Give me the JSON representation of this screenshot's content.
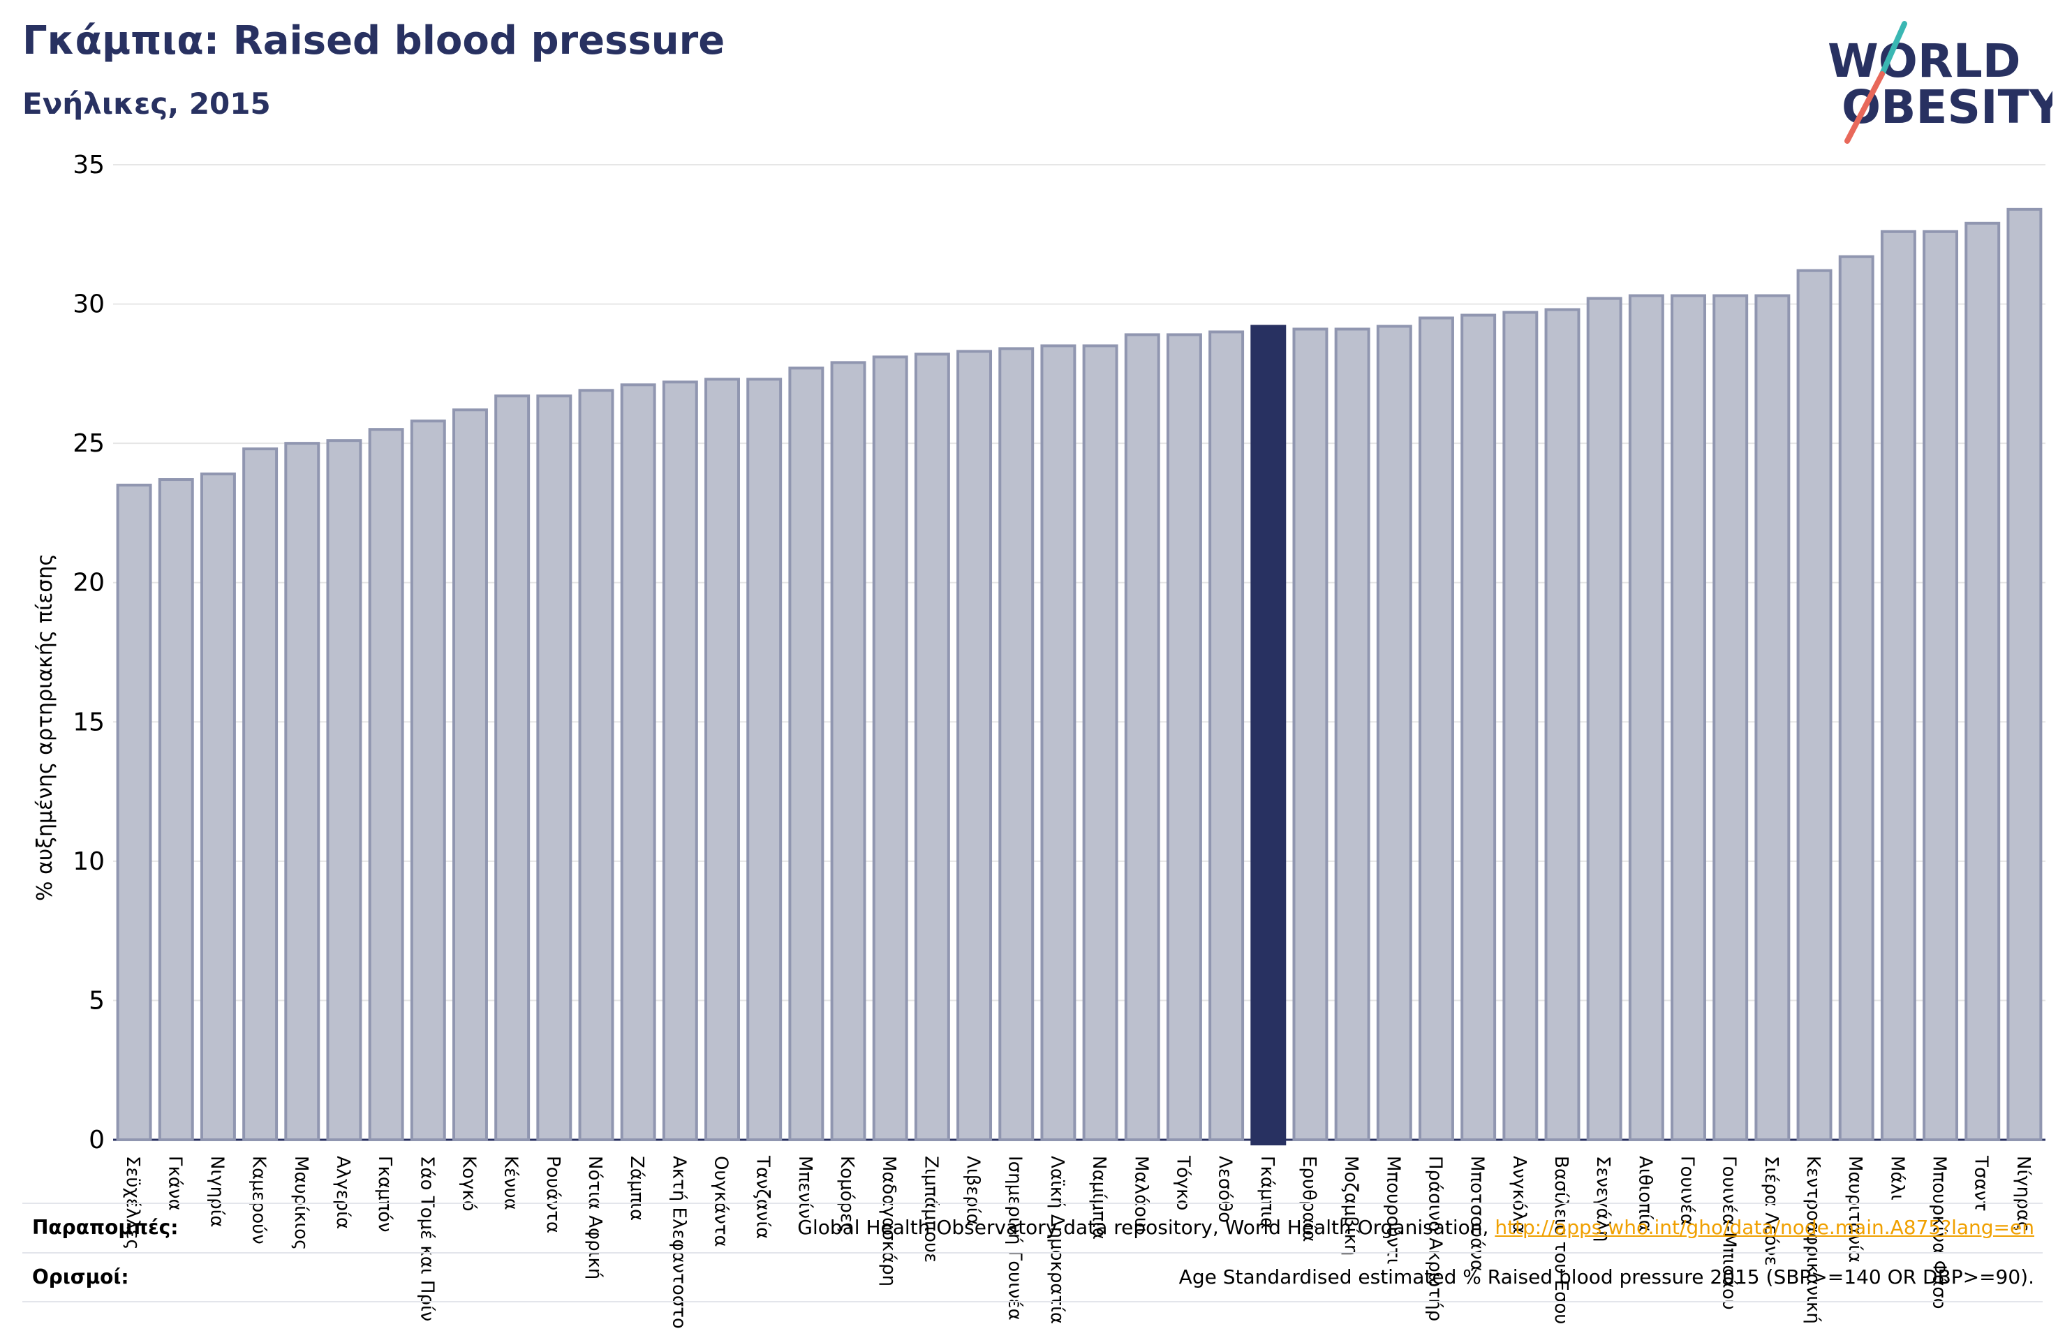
{
  "header": {
    "title": "Γκάμπια: Raised blood pressure",
    "subtitle": "Ενήλικες, 2015"
  },
  "logo": {
    "line1": "WORLD",
    "line2": "OBESITY",
    "slash_color_top": "#3ab7b3",
    "slash_color_bottom": "#e8685a"
  },
  "colors": {
    "bar_fill": "#bcc0ce",
    "bar_stroke": "#9096b0",
    "highlight": "#283161",
    "grid": "#e6e6e6",
    "axis": "#283161"
  },
  "chart_data": {
    "type": "bar",
    "ylabel": "% αυξημένης αρτηριακής πίεσης",
    "ylim": [
      0,
      35
    ],
    "yticks": [
      0,
      5,
      10,
      15,
      20,
      25,
      30,
      35
    ],
    "grid": true,
    "highlight_category": "Γκάμπια",
    "categories": [
      "Σεϋχέλλες",
      "Γκάνα",
      "Νιγηρία",
      "Καμερούν",
      "Μαυρίκιος",
      "Αλγερία",
      "Γκαμπόν",
      "Σάο Τομέ και Πρίνσιπε",
      "Κογκό",
      "Κένυα",
      "Ρουάντα",
      "Νότια Αφρική",
      "Ζάμπια",
      "Ακτή Ελεφαντοστού",
      "Ουγκάντα",
      "Τανζανία",
      "Μπενίν",
      "Κομόρες",
      "Μαδαγασκάρη",
      "Ζιμπάμπουε",
      "Λιβερία",
      "Ισημερινή Γουινέα",
      "Λαϊκή Δημοκρατία του Κονγκό",
      "Ναμίμπια",
      "Μαλάουι",
      "Τόγκο",
      "Λεσόθο",
      "Γκάμπια",
      "Ερυθραία",
      "Μοζαμβίκη",
      "Μπουρούντι",
      "Πράσινο Ακρωτήριο",
      "Μποτσουάνα",
      "Ανγκόλα",
      "Βασίλειο του Εσουατίνι",
      "Σενεγάλη",
      "Αιθιοπία",
      "Γουινέα",
      "Γουινέα-Μπισάου",
      "Σιέρα Λεόνε",
      "Κεντροαφρικανική Δημοκρατία",
      "Μαυριτανία",
      "Μάλι",
      "Μπουρκίνα Φάσο",
      "Τσαντ",
      "Νίγηρας"
    ],
    "categories_display": [
      "Σεϋχέλλες",
      "Γκάνα",
      "Νιγηρία",
      "Καμερούν",
      "Μαυρίκιος",
      "Αλγερία",
      "Γκαμπόν",
      "Σάο Τομέ και Πρίν",
      "Κογκό",
      "Κένυα",
      "Ρουάντα",
      "Νότια Αφρική",
      "Ζάμπια",
      "Ακτή Ελεφαντοστο",
      "Ουγκάντα",
      "Τανζανία",
      "Μπενίν",
      "Κομόρες",
      "Μαδαγασκάρη",
      "Ζιμπάμπουε",
      "Λιβερία",
      "Ισημερινή Γουινέα",
      "Λαϊκή Δημοκρατία",
      "Ναμίμπια",
      "Μαλάουι",
      "Τόγκο",
      "Λεσόθο",
      "Γκάμπια",
      "Ερυθραία",
      "Μοζαμβίκη",
      "Μπουρούντι",
      "Πράσινο Ακρωτήρ",
      "Μποτσουάνα",
      "Ανγκόλα",
      "Βασίλειο του Εσου",
      "Σενεγάλη",
      "Αιθιοπία",
      "Γουινέα",
      "Γουινέα-Μπισάου",
      "Σιέρα Λεόνε",
      "Κεντροαφρικανική",
      "Μαυριτανία",
      "Μάλι",
      "Μπουρκίνα Φάσο",
      "Τσαντ",
      "Νίγηρας"
    ],
    "values": [
      23.5,
      23.7,
      23.9,
      24.8,
      25.0,
      25.1,
      25.5,
      25.8,
      26.2,
      26.7,
      26.7,
      26.9,
      27.1,
      27.2,
      27.3,
      27.3,
      27.7,
      27.9,
      28.1,
      28.2,
      28.3,
      28.4,
      28.5,
      28.5,
      28.9,
      28.9,
      29.0,
      29.2,
      29.1,
      29.1,
      29.2,
      29.5,
      29.6,
      29.7,
      29.8,
      30.2,
      30.3,
      30.3,
      30.3,
      30.3,
      31.2,
      31.7,
      32.6,
      32.6,
      32.9,
      33.4
    ]
  },
  "footer": {
    "references_label": "Παραπομπές:",
    "references_text": "Global Health Observatory data repository, World Health Organisation, ",
    "references_link": "http://apps.who.int/gho/data/node.main.A875?lang=en",
    "definitions_label": "Ορισμοί:",
    "definitions_text": "Age Standardised estimated % Raised blood pressure 2015 (SBP>=140 OR DBP>=90)."
  }
}
